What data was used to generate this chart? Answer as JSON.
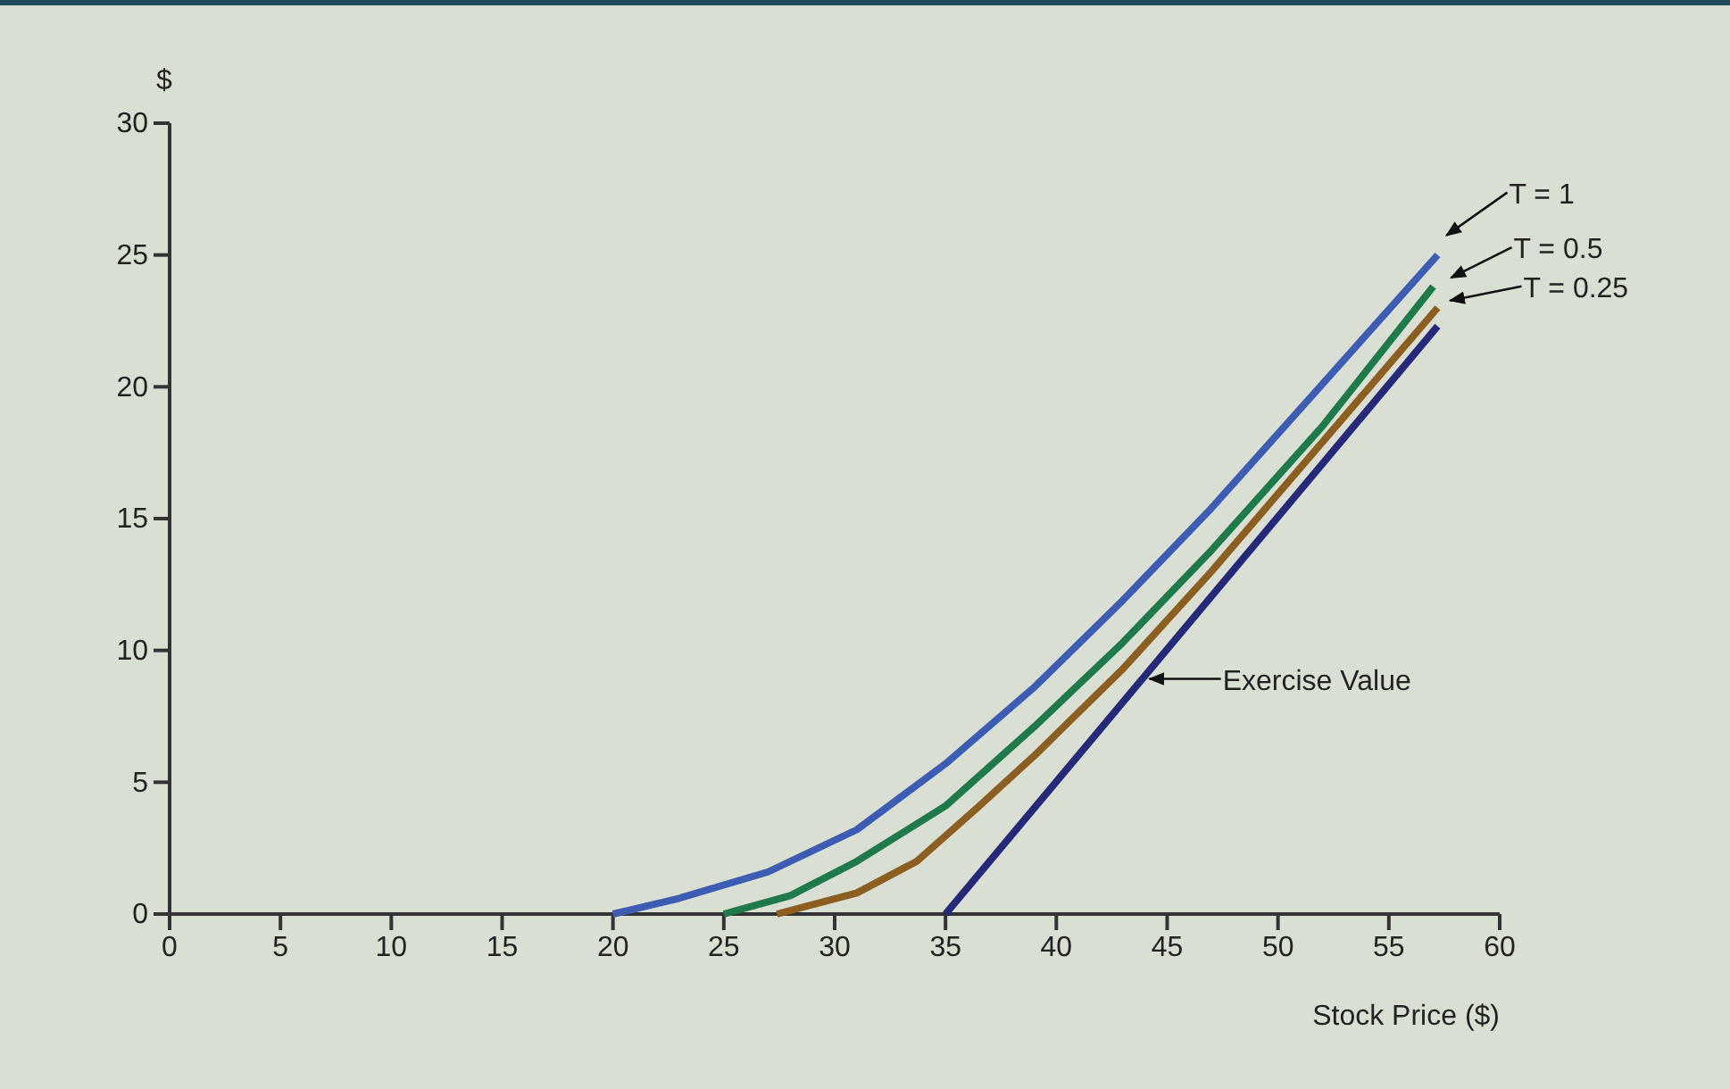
{
  "chart_data": {
    "type": "line",
    "ylabel": "$",
    "xlabel": "Stock Price ($)",
    "xlim": [
      0,
      60
    ],
    "xticks": [
      0,
      5,
      10,
      15,
      20,
      25,
      30,
      35,
      40,
      45,
      50,
      55,
      60
    ],
    "ylim": [
      0,
      30
    ],
    "yticks": [
      0,
      5,
      10,
      15,
      20,
      25,
      30
    ],
    "grid": false,
    "legend": false,
    "marker": "none",
    "line_style": "solid",
    "series": [
      {
        "name": "T = 1",
        "color": "#3d5db5",
        "x": [
          20,
          23,
          27,
          31,
          35,
          39,
          43,
          47,
          52,
          57.2
        ],
        "values": [
          0,
          0.6,
          1.6,
          3.2,
          5.7,
          8.6,
          11.9,
          15.4,
          20.1,
          25
        ]
      },
      {
        "name": "T = 0.5",
        "color": "#1e7a4a",
        "x": [
          25,
          28,
          31,
          35,
          39,
          43,
          47,
          52,
          57
        ],
        "values": [
          0,
          0.7,
          2,
          4.1,
          7.1,
          10.3,
          13.8,
          18.5,
          23.8
        ]
      },
      {
        "name": "T = 0.25",
        "color": "#8c5e1f",
        "x": [
          27.4,
          31,
          33.7,
          36.4,
          39,
          43,
          47,
          52,
          57.2
        ],
        "values": [
          0,
          0.8,
          2,
          4,
          6,
          9.3,
          13,
          17.9,
          23
        ]
      },
      {
        "name": "Exercise Value",
        "color": "#26287a",
        "x": [
          35,
          57.2
        ],
        "values": [
          0,
          22.3
        ]
      }
    ]
  }
}
